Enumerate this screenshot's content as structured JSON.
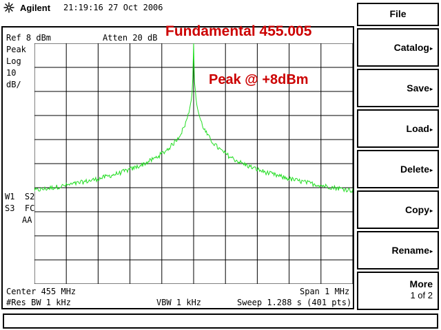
{
  "header": {
    "brand": "Agilent",
    "logo_icon": "agilent-spark-icon",
    "datetime": "21:19:16  27 Oct 2006"
  },
  "display": {
    "ref_level": "Ref 8 dBm",
    "attenuation": "Atten 20 dB",
    "detector": "Peak",
    "scale_type": "Log",
    "scale_value": "10",
    "scale_unit": "dB/",
    "trace_flags_1": "W1  S2",
    "trace_flags_2": "S3  FC",
    "trace_flags_3": "AA",
    "center": "Center 455 MHz",
    "span": "Span 1 MHz",
    "res_bw": "#Res BW 1 kHz",
    "vbw": "VBW 1 kHz",
    "sweep": "Sweep 1.288 s (401 pts)"
  },
  "annotations": {
    "title": "Fundamental 455.005",
    "peak": "Peak @ +8dBm"
  },
  "trace": {
    "color": "#22dd22",
    "points": 401,
    "peak_level_dbm": 8,
    "noise_floor_dbm": -64,
    "peak_frequency_mhz": 455.005
  },
  "softkeys": {
    "file": "File",
    "catalog": "Catalog",
    "save": "Save",
    "load": "Load",
    "delete": "Delete",
    "copy": "Copy",
    "rename": "Rename",
    "more": "More",
    "more_page": "1 of 2",
    "arrow": "▸"
  },
  "colors": {
    "annotation": "#cc0000",
    "grid": "#000000"
  }
}
